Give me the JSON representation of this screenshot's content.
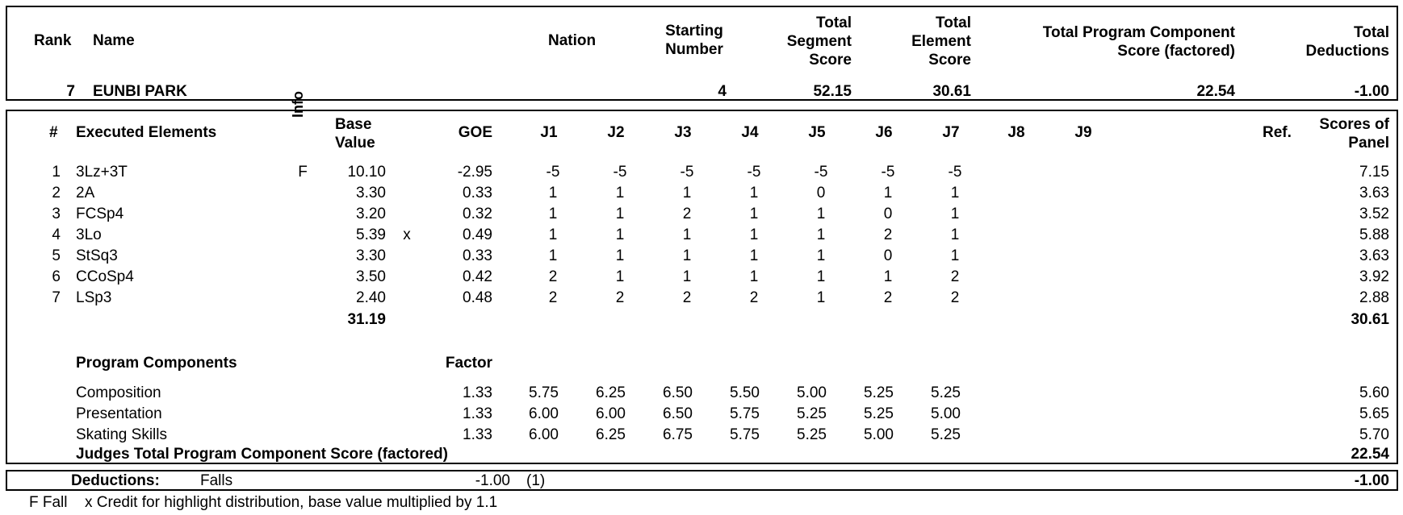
{
  "header": {
    "rank_label": "Rank",
    "name_label": "Name",
    "nation_label": "Nation",
    "starting_number_label": [
      "Starting",
      "Number"
    ],
    "tss_label": [
      "Total",
      "Segment",
      "Score"
    ],
    "tes_label": [
      "Total",
      "Element",
      "Score"
    ],
    "pcs_label": [
      "Total Program Component",
      "Score (factored)"
    ],
    "deductions_label": [
      "Total",
      "Deductions"
    ]
  },
  "skater": {
    "rank": "7",
    "name": "EUNBI PARK",
    "nation": "",
    "starting_number": "4",
    "total_segment_score": "52.15",
    "total_element_score": "30.61",
    "total_pcs": "22.54",
    "total_deductions": "-1.00"
  },
  "elements_header": {
    "num": "#",
    "executed_elements": "Executed Elements",
    "info": "Info",
    "base_value": [
      "Base",
      "Value"
    ],
    "goe": "GOE",
    "judges": [
      "J1",
      "J2",
      "J3",
      "J4",
      "J5",
      "J6",
      "J7",
      "J8",
      "J9"
    ],
    "ref": "Ref.",
    "scores_of_panel": [
      "Scores of",
      "Panel"
    ]
  },
  "elements": [
    {
      "num": "1",
      "name": "3Lz+3T",
      "info": "F",
      "base": "10.10",
      "x": "",
      "goe": "-2.95",
      "judges": [
        "-5",
        "-5",
        "-5",
        "-5",
        "-5",
        "-5",
        "-5"
      ],
      "panel": "7.15"
    },
    {
      "num": "2",
      "name": "2A",
      "info": "",
      "base": "3.30",
      "x": "",
      "goe": "0.33",
      "judges": [
        "1",
        "1",
        "1",
        "1",
        "0",
        "1",
        "1"
      ],
      "panel": "3.63"
    },
    {
      "num": "3",
      "name": "FCSp4",
      "info": "",
      "base": "3.20",
      "x": "",
      "goe": "0.32",
      "judges": [
        "1",
        "1",
        "2",
        "1",
        "1",
        "0",
        "1"
      ],
      "panel": "3.52"
    },
    {
      "num": "4",
      "name": "3Lo",
      "info": "",
      "base": "5.39",
      "x": "x",
      "goe": "0.49",
      "judges": [
        "1",
        "1",
        "1",
        "1",
        "1",
        "2",
        "1"
      ],
      "panel": "5.88"
    },
    {
      "num": "5",
      "name": "StSq3",
      "info": "",
      "base": "3.30",
      "x": "",
      "goe": "0.33",
      "judges": [
        "1",
        "1",
        "1",
        "1",
        "1",
        "0",
        "1"
      ],
      "panel": "3.63"
    },
    {
      "num": "6",
      "name": "CCoSp4",
      "info": "",
      "base": "3.50",
      "x": "",
      "goe": "0.42",
      "judges": [
        "2",
        "1",
        "1",
        "1",
        "1",
        "1",
        "2"
      ],
      "panel": "3.92"
    },
    {
      "num": "7",
      "name": "LSp3",
      "info": "",
      "base": "2.40",
      "x": "",
      "goe": "0.48",
      "judges": [
        "2",
        "2",
        "2",
        "2",
        "1",
        "2",
        "2"
      ],
      "panel": "2.88"
    }
  ],
  "elements_totals": {
    "base_total": "31.19",
    "panel_total": "30.61"
  },
  "program_components": {
    "title": "Program Components",
    "factor_label": "Factor",
    "rows": [
      {
        "name": "Composition",
        "factor": "1.33",
        "judges": [
          "5.75",
          "6.25",
          "6.50",
          "5.50",
          "5.00",
          "5.25",
          "5.25"
        ],
        "panel": "5.60"
      },
      {
        "name": "Presentation",
        "factor": "1.33",
        "judges": [
          "6.00",
          "6.00",
          "6.50",
          "5.75",
          "5.25",
          "5.25",
          "5.00"
        ],
        "panel": "5.65"
      },
      {
        "name": "Skating Skills",
        "factor": "1.33",
        "judges": [
          "6.00",
          "6.25",
          "6.75",
          "5.75",
          "5.25",
          "5.00",
          "5.25"
        ],
        "panel": "5.70"
      }
    ],
    "total_label": "Judges Total Program Component Score (factored)",
    "total_value": "22.54"
  },
  "deductions": {
    "label": "Deductions:",
    "type": "Falls",
    "value": "-1.00",
    "count": "(1)",
    "total": "-1.00"
  },
  "legend": {
    "f_text": "F Fall",
    "x_text": "x Credit for highlight distribution, base value multiplied by 1.1"
  }
}
